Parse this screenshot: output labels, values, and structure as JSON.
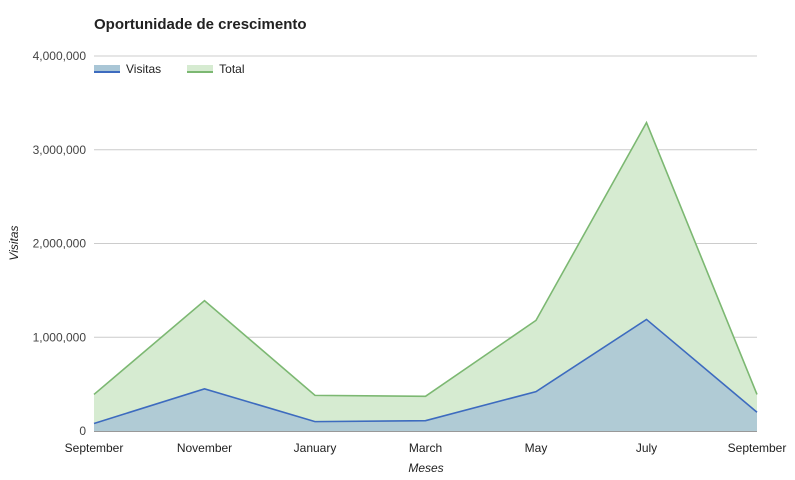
{
  "chart_data": {
    "type": "area",
    "title": "Oportunidade de crescimento",
    "xlabel": "Meses",
    "ylabel": "Visitas",
    "categories": [
      "September",
      "November",
      "January",
      "March",
      "May",
      "July",
      "September"
    ],
    "series": [
      {
        "name": "Visitas",
        "values": [
          80000,
          450000,
          100000,
          110000,
          420000,
          1190000,
          200000
        ],
        "color": "#3d6bbf",
        "fill": "#a9c6d6"
      },
      {
        "name": "Total",
        "values": [
          390000,
          1390000,
          380000,
          370000,
          1180000,
          3290000,
          390000
        ],
        "color": "#7cb872",
        "fill": "#d6ebd1"
      }
    ],
    "ylim": [
      0,
      4000000
    ],
    "yticks": [
      {
        "value": 0,
        "label": "0"
      },
      {
        "value": 1000000,
        "label": "1,000,000"
      },
      {
        "value": 2000000,
        "label": "2,000,000"
      },
      {
        "value": 3000000,
        "label": "3,000,000"
      },
      {
        "value": 4000000,
        "label": "4,000,000"
      }
    ],
    "grid": true,
    "legend": "top-left"
  }
}
